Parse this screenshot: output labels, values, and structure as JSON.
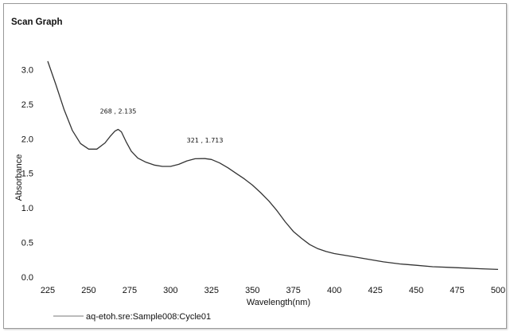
{
  "chart_data": {
    "type": "line",
    "title": "Scan Graph",
    "xlabel": "Wavelength(nm)",
    "ylabel": "Absorbance",
    "xlim": [
      225,
      500
    ],
    "ylim": [
      0.0,
      3.2
    ],
    "x_ticks": [
      "225",
      "250",
      "275",
      "300",
      "325",
      "350",
      "375",
      "400",
      "425",
      "450",
      "475",
      "500"
    ],
    "y_ticks": [
      "0.0",
      "0.5",
      "1.0",
      "1.5",
      "2.0",
      "2.5",
      "3.0"
    ],
    "grid": false,
    "legend": "bottom-left",
    "series": [
      {
        "name": "aq-etoh.sre:Sample008:Cycle01",
        "color": "#333333",
        "x": [
          225,
          230,
          235,
          240,
          245,
          250,
          255,
          260,
          263,
          266,
          268,
          270,
          273,
          276,
          280,
          285,
          290,
          295,
          300,
          305,
          310,
          315,
          320,
          321,
          325,
          330,
          335,
          340,
          345,
          350,
          355,
          360,
          365,
          370,
          375,
          380,
          385,
          390,
          395,
          400,
          410,
          420,
          430,
          440,
          450,
          460,
          470,
          480,
          490,
          500
        ],
        "y": [
          3.12,
          2.78,
          2.42,
          2.12,
          1.93,
          1.85,
          1.85,
          1.94,
          2.03,
          2.11,
          2.135,
          2.1,
          1.95,
          1.82,
          1.72,
          1.66,
          1.62,
          1.6,
          1.6,
          1.63,
          1.68,
          1.71,
          1.713,
          1.713,
          1.7,
          1.65,
          1.58,
          1.5,
          1.42,
          1.33,
          1.22,
          1.1,
          0.96,
          0.8,
          0.66,
          0.56,
          0.47,
          0.41,
          0.37,
          0.34,
          0.3,
          0.26,
          0.22,
          0.19,
          0.17,
          0.15,
          0.14,
          0.13,
          0.12,
          0.11
        ]
      }
    ],
    "annotations": [
      {
        "text": "268 , 2.135",
        "x": 268,
        "y": 2.135
      },
      {
        "text": "321 , 1.713",
        "x": 321,
        "y": 1.713
      }
    ]
  }
}
